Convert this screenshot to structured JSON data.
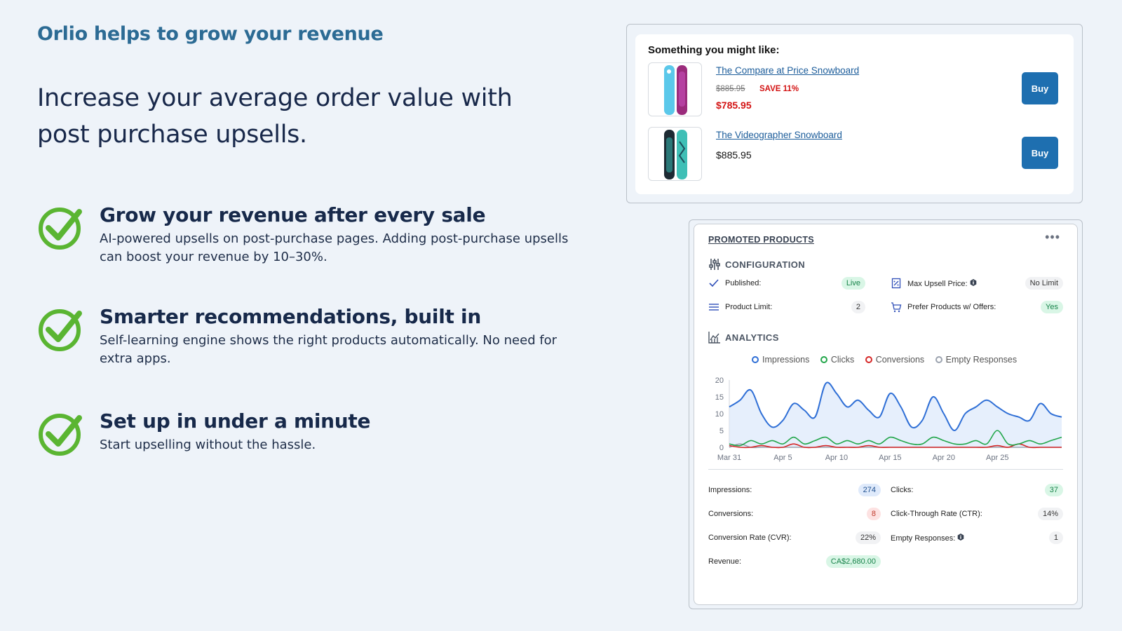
{
  "tagline": "Orlio helps to grow your revenue",
  "headline": "Increase your average order value with post purchase upsells.",
  "features": [
    {
      "title": "Grow your revenue after every sale",
      "desc": "AI-powered upsells on post-purchase pages. Adding post-purchase upsells can boost your revenue by 10–30%."
    },
    {
      "title": "Smarter recommendations, built in",
      "desc": "Self-learning engine shows the right products automatically. No need for extra apps."
    },
    {
      "title": "Set up in under a minute",
      "desc": "Start upselling without the hassle."
    }
  ],
  "recommendations": {
    "heading": "Something you might like:",
    "buy_label": "Buy",
    "items": [
      {
        "name": "The Compare at Price Snowboard",
        "old_price": "$885.95",
        "save": "SAVE 11%",
        "price": "$785.95"
      },
      {
        "name": "The Videographer Snowboard",
        "price": "$885.95"
      }
    ]
  },
  "promoted": {
    "title": "PROMOTED PRODUCTS",
    "more": "•••",
    "config_heading": "CONFIGURATION",
    "config": {
      "published_label": "Published:",
      "published_value": "Live",
      "max_price_label": "Max Upsell Price:",
      "max_price_value": "No Limit",
      "product_limit_label": "Product Limit:",
      "product_limit_value": "2",
      "prefer_label": "Prefer Products w/ Offers:",
      "prefer_value": "Yes"
    },
    "analytics_heading": "ANALYTICS",
    "stats": {
      "impressions_label": "Impressions:",
      "impressions_value": "274",
      "clicks_label": "Clicks:",
      "clicks_value": "37",
      "conversions_label": "Conversions:",
      "conversions_value": "8",
      "ctr_label": "Click-Through Rate (CTR):",
      "ctr_value": "14%",
      "cvr_label": "Conversion Rate (CVR):",
      "cvr_value": "22%",
      "empty_label": "Empty Responses:",
      "empty_value": "1",
      "revenue_label": "Revenue:",
      "revenue_value": "CA$2,680.00"
    }
  },
  "colors": {
    "impressions": "#2f6fd6",
    "clicks": "#22a64a",
    "conversions": "#d62828",
    "empty": "#9ca3af",
    "check": "#5ab532"
  },
  "chart_data": {
    "type": "line",
    "x_tick_labels": [
      "Mar 31",
      "Apr 5",
      "Apr 10",
      "Apr 15",
      "Apr 20",
      "Apr 25"
    ],
    "ylim": [
      0,
      20
    ],
    "y_ticks": [
      0,
      5,
      10,
      15,
      20
    ],
    "grid": false,
    "legend": "top",
    "series": [
      {
        "name": "Impressions",
        "values": [
          12,
          14,
          17,
          10,
          6,
          8,
          13,
          11,
          9,
          19,
          16,
          12,
          14,
          11,
          9,
          16,
          12,
          6,
          8,
          15,
          10,
          5,
          10,
          12,
          14,
          12,
          10,
          9,
          8,
          13,
          10,
          9
        ]
      },
      {
        "name": "Clicks",
        "values": [
          1,
          0.5,
          2,
          1,
          2,
          1,
          3,
          1,
          2,
          3,
          1,
          2,
          1,
          2,
          1,
          3,
          2,
          1,
          1,
          3,
          2,
          1,
          1,
          2,
          1,
          5,
          1,
          1,
          2,
          1,
          2,
          3
        ]
      },
      {
        "name": "Conversions",
        "values": [
          0.5,
          0,
          0,
          0.5,
          0,
          0,
          1,
          0,
          0,
          0.5,
          0,
          0,
          0,
          0.5,
          0,
          0,
          0,
          0,
          0,
          0,
          0,
          0,
          0,
          0,
          0,
          0.5,
          0,
          1,
          0,
          0,
          0,
          0
        ]
      },
      {
        "name": "Empty Responses",
        "values": [
          0,
          1,
          0,
          0,
          0,
          0,
          0,
          0,
          0,
          0,
          0,
          0,
          0,
          0,
          0,
          0,
          0,
          0,
          0,
          0,
          0,
          0,
          0,
          0,
          0,
          0,
          0,
          0,
          0,
          0,
          0,
          0
        ]
      }
    ]
  }
}
